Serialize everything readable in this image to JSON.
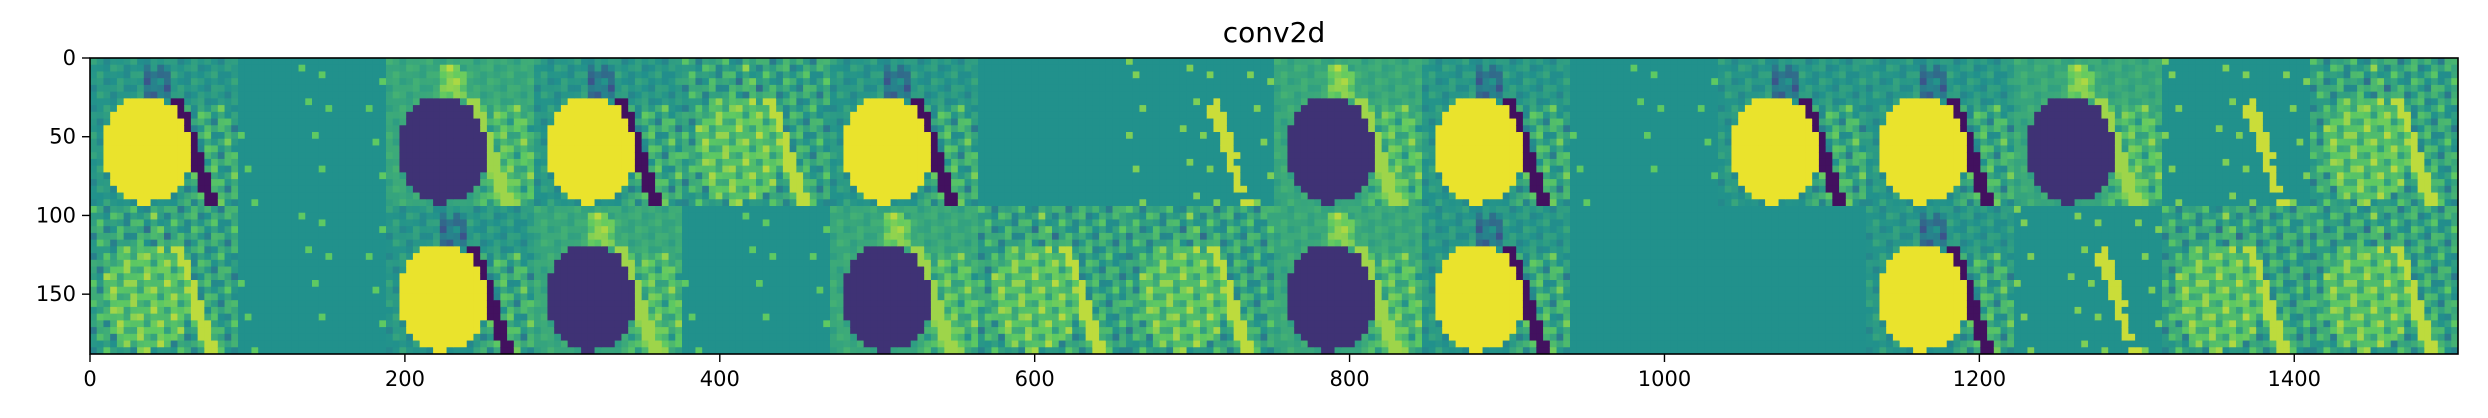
{
  "chart_data": {
    "type": "heatmap",
    "title": "conv2d",
    "xlabel": "",
    "ylabel": "",
    "colormap": "viridis",
    "colors": {
      "low": "#440154",
      "low_mid": "#3b528b",
      "mid": "#21918c",
      "high_mid": "#5ec962",
      "high": "#fde725"
    },
    "xlim": [
      0,
      1504
    ],
    "ylim": [
      188,
      0
    ],
    "x_ticks": [
      0,
      200,
      400,
      600,
      800,
      1000,
      1200,
      1400
    ],
    "y_ticks": [
      0,
      50,
      100,
      150
    ],
    "grid": false,
    "legend": "none",
    "tiles": {
      "rows": 2,
      "cols": 16,
      "tile_size": 94,
      "description_of_values": "feature map activation (0=low,1=high)",
      "row_0": [
        {
          "index": 0,
          "kind": "bright-figure",
          "mean": 0.6
        },
        {
          "index": 1,
          "kind": "sparse",
          "mean": 0.5
        },
        {
          "index": 2,
          "kind": "inverted-figure",
          "mean": 0.45
        },
        {
          "index": 3,
          "kind": "bright-figure",
          "mean": 0.62
        },
        {
          "index": 4,
          "kind": "edge-figure",
          "mean": 0.55
        },
        {
          "index": 5,
          "kind": "bright-figure",
          "mean": 0.6
        },
        {
          "index": 6,
          "kind": "flat",
          "mean": 0.5
        },
        {
          "index": 7,
          "kind": "sparse-edges",
          "mean": 0.5
        },
        {
          "index": 8,
          "kind": "inverted-figure",
          "mean": 0.45
        },
        {
          "index": 9,
          "kind": "bright-figure",
          "mean": 0.62
        },
        {
          "index": 10,
          "kind": "sparse",
          "mean": 0.5
        },
        {
          "index": 11,
          "kind": "bright-figure",
          "mean": 0.6
        },
        {
          "index": 12,
          "kind": "bright-figure",
          "mean": 0.6
        },
        {
          "index": 13,
          "kind": "inverted-figure",
          "mean": 0.48
        },
        {
          "index": 14,
          "kind": "sparse-edges",
          "mean": 0.5
        },
        {
          "index": 15,
          "kind": "edge-figure",
          "mean": 0.55
        }
      ],
      "row_1": [
        {
          "index": 16,
          "kind": "edge-figure",
          "mean": 0.55
        },
        {
          "index": 17,
          "kind": "sparse",
          "mean": 0.5
        },
        {
          "index": 18,
          "kind": "bright-figure",
          "mean": 0.58
        },
        {
          "index": 19,
          "kind": "inverted-figure",
          "mean": 0.45
        },
        {
          "index": 20,
          "kind": "sparse",
          "mean": 0.5
        },
        {
          "index": 21,
          "kind": "inverted-figure",
          "mean": 0.55
        },
        {
          "index": 22,
          "kind": "edge-figure",
          "mean": 0.5
        },
        {
          "index": 23,
          "kind": "edge-figure",
          "mean": 0.55
        },
        {
          "index": 24,
          "kind": "inverted-figure",
          "mean": 0.52
        },
        {
          "index": 25,
          "kind": "bright-figure",
          "mean": 0.6
        },
        {
          "index": 26,
          "kind": "flat",
          "mean": 0.5
        },
        {
          "index": 27,
          "kind": "flat",
          "mean": 0.5
        },
        {
          "index": 28,
          "kind": "bright-figure",
          "mean": 0.6
        },
        {
          "index": 29,
          "kind": "sparse-edges",
          "mean": 0.5
        },
        {
          "index": 30,
          "kind": "edge-figure",
          "mean": 0.55
        },
        {
          "index": 31,
          "kind": "edge-figure",
          "mean": 0.58
        }
      ]
    }
  }
}
